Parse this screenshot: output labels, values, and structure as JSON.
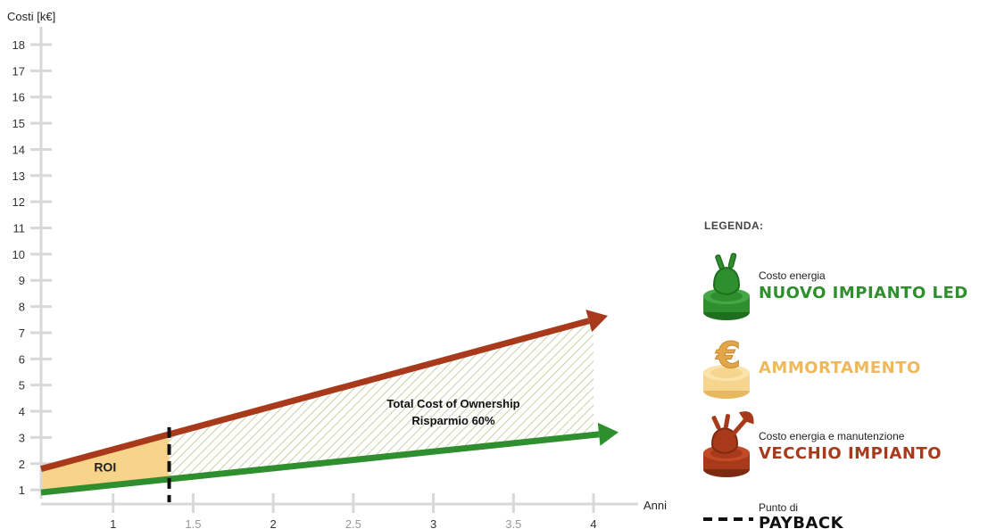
{
  "chart_data": {
    "type": "line",
    "ylabel": "Costi [k€]",
    "xlabel": "Anni",
    "yticks": [
      "1",
      "2",
      "3",
      "4",
      "5",
      "6",
      "7",
      "8",
      "9",
      "10",
      "11",
      "12",
      "13",
      "14",
      "15",
      "16",
      "17",
      "18"
    ],
    "xticks": [
      "1",
      "1.5",
      "2",
      "2.5",
      "3",
      "3.5",
      "4"
    ],
    "xlim": [
      0.55,
      4
    ],
    "ylim": [
      0.8,
      18
    ],
    "series": [
      {
        "name": "VECCHIO IMPIANTO",
        "color": "#a8391a",
        "x": [
          0.55,
          4
        ],
        "y": [
          1.8,
          7.5
        ]
      },
      {
        "name": "NUOVO IMPIANTO LED",
        "color": "#2f8f2f",
        "x": [
          0.55,
          4
        ],
        "y": [
          0.9,
          3.1
        ]
      }
    ],
    "payback_x": 1.35,
    "annotations": {
      "roi": "ROI",
      "tco_line1": "Total Cost of Ownership",
      "tco_line2": "Risparmio 60%"
    },
    "grid": false
  },
  "legend": {
    "title": "LEGENDA:",
    "items": [
      {
        "small": "Costo energia",
        "big": "NUOVO IMPIANTO LED",
        "color": "#2f8f2f",
        "icon": "plug-icon"
      },
      {
        "small": "",
        "big": "AMMORTAMENTO",
        "color": "#f0b85a",
        "icon": "euro-icon"
      },
      {
        "small": "Costo energia e manutenzione",
        "big": "VECCHIO IMPIANTO",
        "color": "#a8391a",
        "icon": "wrench-plug-icon"
      },
      {
        "small": "Punto di",
        "big": "PAYBACK",
        "color": "#111111",
        "icon": "dashed-line-icon"
      }
    ]
  },
  "colors": {
    "roi_fill": "#f7d48a",
    "hatch": "#c8d0a8",
    "axis": "#d8d8d8"
  }
}
